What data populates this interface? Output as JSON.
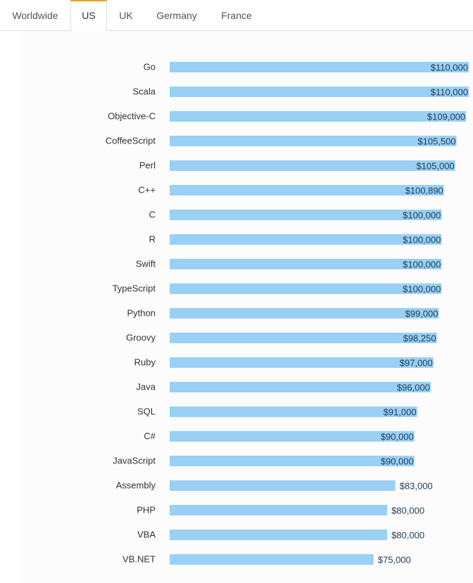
{
  "tabs": [
    {
      "label": "Worldwide",
      "active": false
    },
    {
      "label": "US",
      "active": true
    },
    {
      "label": "UK",
      "active": false
    },
    {
      "label": "Germany",
      "active": false
    },
    {
      "label": "France",
      "active": false
    }
  ],
  "colors": {
    "bar": "#99d0f5",
    "tab_accent": "#f0a020"
  },
  "chart_data": {
    "type": "bar",
    "orientation": "horizontal",
    "title": "",
    "xlabel": "",
    "ylabel": "",
    "xlim": [
      0,
      110000
    ],
    "grid": false,
    "categories": [
      "Go",
      "Scala",
      "Objective-C",
      "CoffeeScript",
      "Perl",
      "C++",
      "C",
      "R",
      "Swift",
      "TypeScript",
      "Python",
      "Groovy",
      "Ruby",
      "Java",
      "SQL",
      "C#",
      "JavaScript",
      "Assembly",
      "PHP",
      "VBA",
      "VB.NET"
    ],
    "values": [
      110000,
      110000,
      109000,
      105500,
      105000,
      100890,
      100000,
      100000,
      100000,
      100000,
      99000,
      98250,
      97000,
      96000,
      91000,
      90000,
      90000,
      83000,
      80000,
      80000,
      75000
    ],
    "value_labels": [
      "$110,000",
      "$110,000",
      "$109,000",
      "$105,500",
      "$105,000",
      "$100,890",
      "$100,000",
      "$100,000",
      "$100,000",
      "$100,000",
      "$99,000",
      "$98,250",
      "$97,000",
      "$96,000",
      "$91,000",
      "$90,000",
      "$90,000",
      "$83,000",
      "$80,000",
      "$80,000",
      "$75,000"
    ]
  }
}
